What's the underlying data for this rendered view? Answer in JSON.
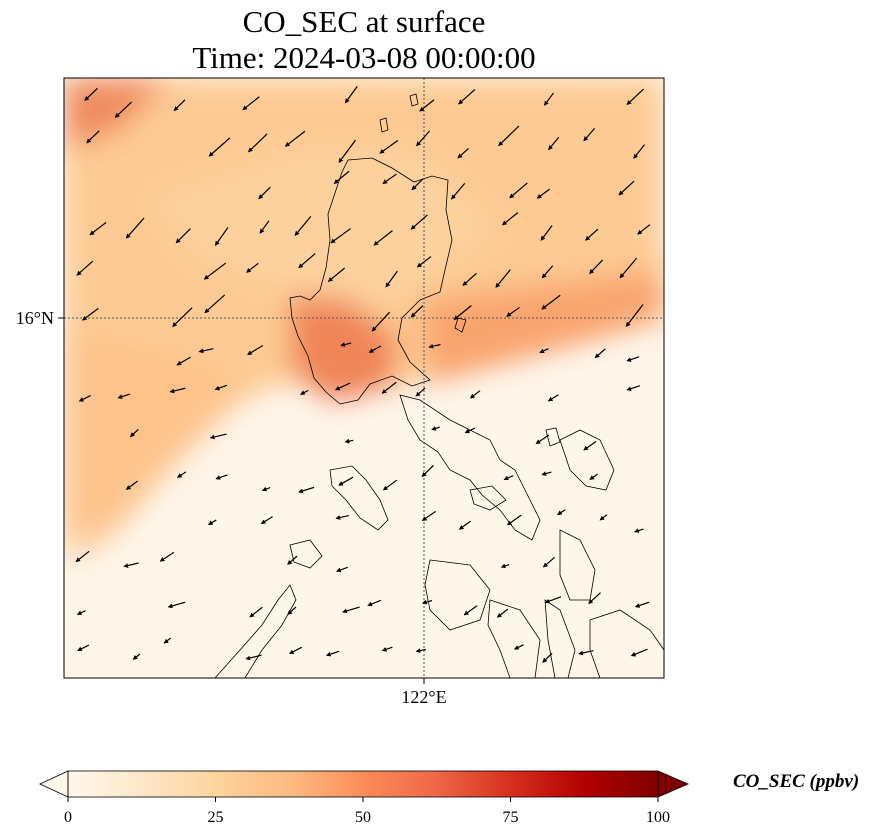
{
  "chart_data": {
    "type": "heatmap",
    "title_line1": "CO_SEC at surface",
    "title_line2": "Time: 2024-03-08 00:00:00",
    "variable": "CO_SEC",
    "time": "2024-03-08 00:00:00",
    "lat_label": "16°N",
    "lon_label": "122°E",
    "colorbar": {
      "label": "CO_SEC (ppbv)",
      "min": 0,
      "max": 100,
      "ticks": [
        0,
        25,
        50,
        75,
        100
      ],
      "colormap": "OrRd",
      "stops": [
        "#fff7ec",
        "#fee8c8",
        "#fdd49e",
        "#fdbb84",
        "#fc8d59",
        "#ef6548",
        "#d7301f",
        "#b30000",
        "#7f0000"
      ],
      "extend": "both"
    },
    "field_approx": [
      {
        "region": "northwest corner",
        "value": 60
      },
      {
        "region": "northern band",
        "value": 35
      },
      {
        "region": "central Luzon west coast",
        "value": 50
      },
      {
        "region": "east of Luzon band",
        "value": 45
      },
      {
        "region": "southwest plume",
        "value": 30
      },
      {
        "region": "southern Philippines",
        "value": 3
      }
    ],
    "wind": "northeasterly surface wind vectors",
    "gridlines": "dotted",
    "coastlines": true
  }
}
